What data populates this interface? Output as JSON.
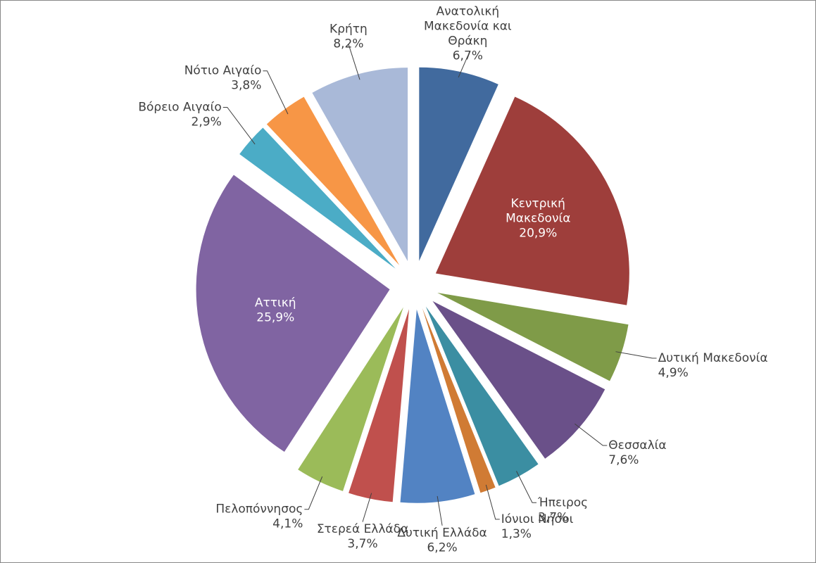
{
  "chart_data": {
    "type": "pie",
    "categories": [
      "Ανατολική Μακεδονία και Θράκη",
      "Κεντρική Μακεδονία",
      "Δυτική Μακεδονία",
      "Θεσσαλία",
      "Ήπειρος",
      "Ιόνιοι Νήσοι",
      "Δυτική Ελλάδα",
      "Στερεά Ελλάδα",
      "Πελοπόννησος",
      "Αττική",
      "Βόρειο Αιγαίο",
      "Νότιο Αιγαίο",
      "Κρήτη"
    ],
    "values": [
      6.7,
      20.9,
      4.9,
      7.6,
      3.7,
      1.3,
      6.2,
      3.7,
      4.1,
      25.9,
      2.9,
      3.8,
      8.2
    ],
    "value_labels": [
      "6,7%",
      "20,9%",
      "4,9%",
      "7,6%",
      "3,7%",
      "1,3%",
      "6,2%",
      "3,7%",
      "4,1%",
      "25,9%",
      "2,9%",
      "3,8%",
      "8,2%"
    ],
    "colors": [
      "#416a9e",
      "#9e3e3b",
      "#7f9b48",
      "#6a5089",
      "#3b8ea2",
      "#d07b34",
      "#5283c3",
      "#c0504d",
      "#9bbb59",
      "#8064a2",
      "#4bacc6",
      "#f79646",
      "#a9b9d8"
    ]
  }
}
